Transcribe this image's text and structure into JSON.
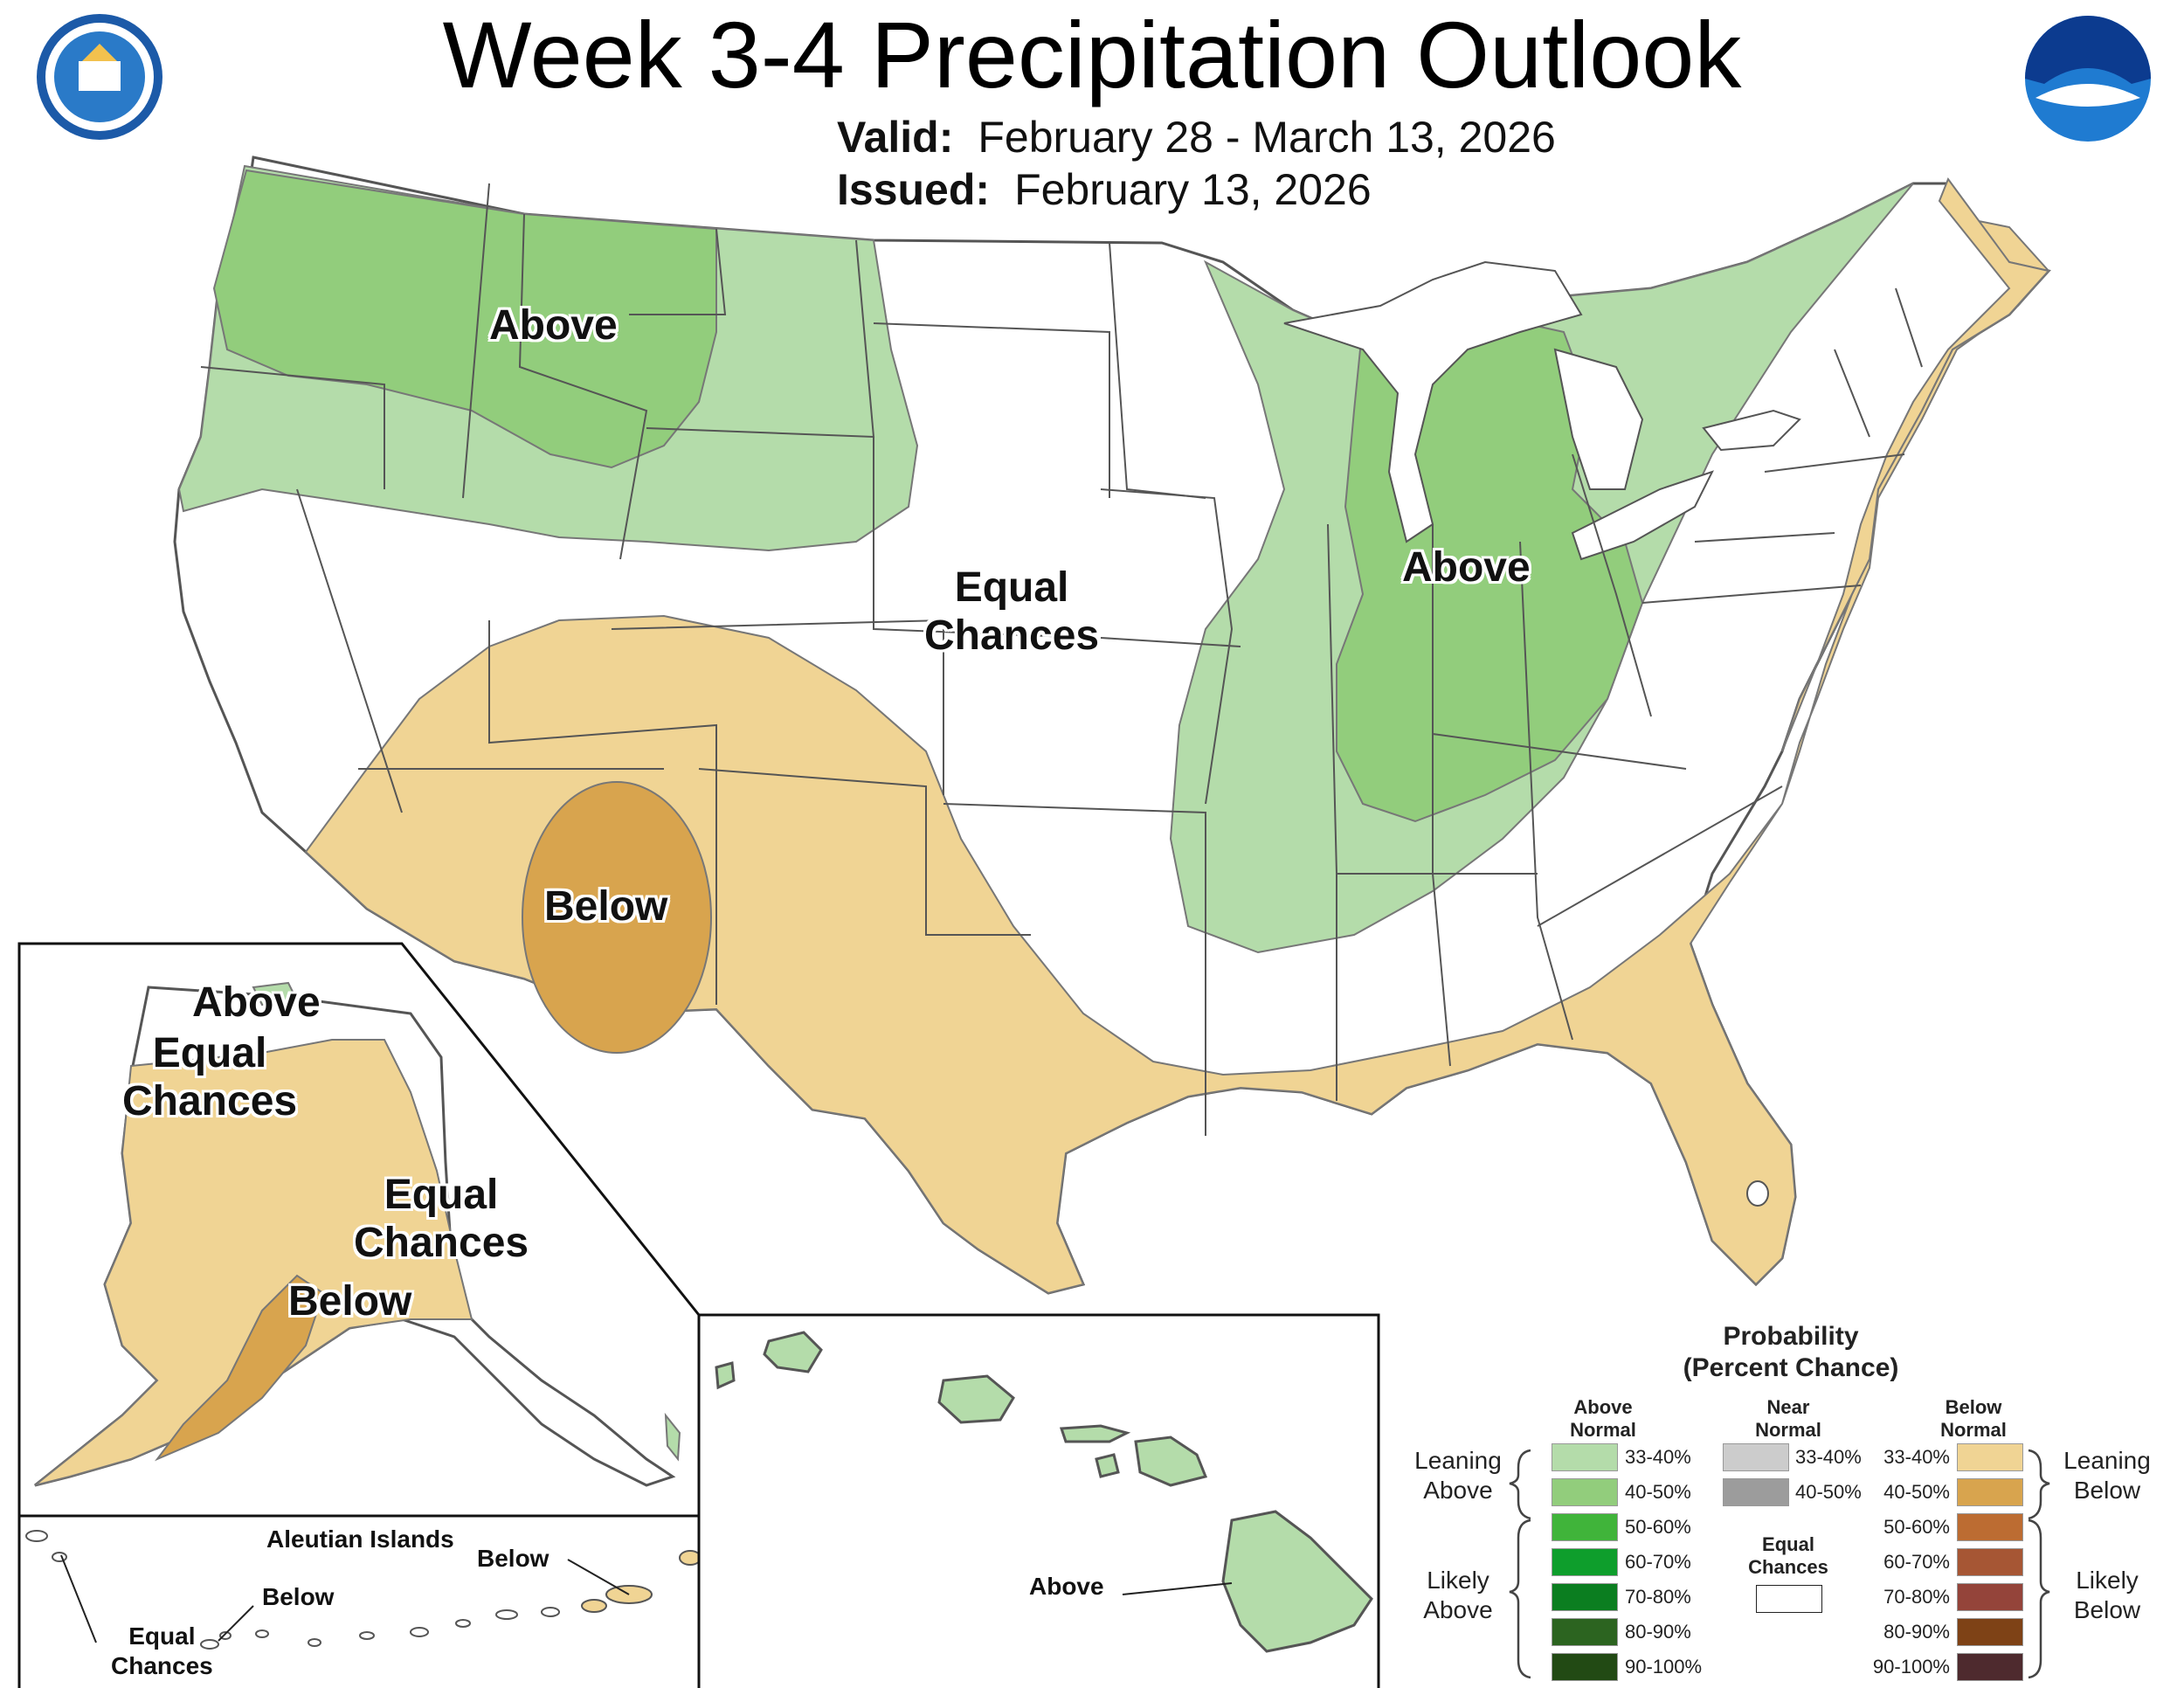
{
  "title": "Week 3-4 Precipitation Outlook",
  "valid": {
    "label": "Valid:",
    "value": "February 28 - March 13, 2026"
  },
  "issued": {
    "label": "Issued:",
    "value": "February 13, 2026"
  },
  "logos": {
    "left": "department-of-commerce-seal",
    "right": "noaa-logo"
  },
  "colors": {
    "above_33_40": "#b4dcaa",
    "above_40_50": "#92cd7c",
    "above_50_60": "#40b43a",
    "above_60_70": "#0e9e2c",
    "above_70_80": "#0b7e20",
    "above_80_90": "#2c6420",
    "above_90_100": "#224a14",
    "near_33_40": "#cccccc",
    "near_40_50": "#9c9c9c",
    "below_33_40": "#f0d494",
    "below_40_50": "#d8a44e",
    "below_50_60": "#bc6c32",
    "below_60_70": "#a65634",
    "below_70_80": "#94443a",
    "below_80_90": "#7e4216",
    "below_90_100": "#4e2a2e"
  },
  "conus_labels": {
    "nw_above": "Above",
    "mw_above": "Above",
    "equal": "Equal\nChances",
    "sw_below": "Below"
  },
  "alaska_labels": {
    "above": "Above",
    "equal_north": "Equal\nChances",
    "equal_east": "Equal\nChances",
    "below": "Below"
  },
  "aleutian": {
    "title": "Aleutian Islands",
    "below_right": "Below",
    "below_left": "Below",
    "equal": "Equal\nChances"
  },
  "hawaii_label": "Above",
  "legend": {
    "title": "Probability\n(Percent Chance)",
    "above_header": "Above\nNormal",
    "near_header": "Near\nNormal",
    "below_header": "Below\nNormal",
    "above_ranges": [
      "33-40%",
      "40-50%",
      "50-60%",
      "60-70%",
      "70-80%",
      "80-90%",
      "90-100%"
    ],
    "near_ranges": [
      "33-40%",
      "40-50%"
    ],
    "below_ranges": [
      "33-40%",
      "40-50%",
      "50-60%",
      "60-70%",
      "70-80%",
      "80-90%",
      "90-100%"
    ],
    "equal_chances": "Equal\nChances",
    "leaning_above": "Leaning\nAbove",
    "likely_above": "Likely\nAbove",
    "leaning_below": "Leaning\nBelow",
    "likely_below": "Likely\nBelow"
  }
}
